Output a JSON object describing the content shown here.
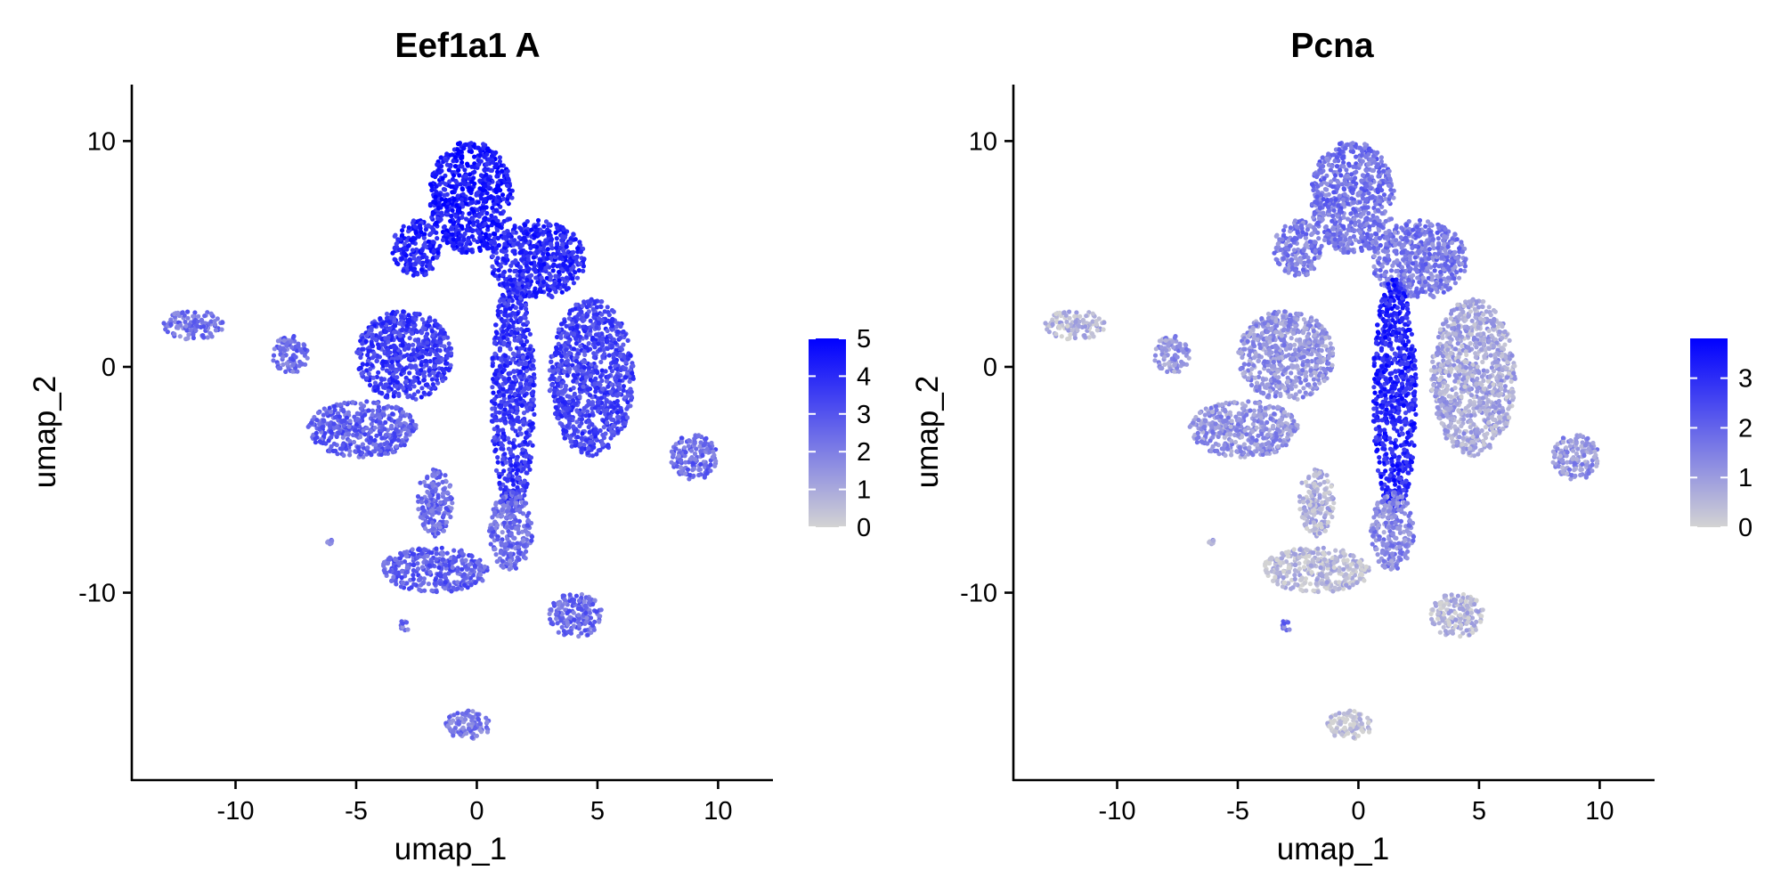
{
  "chart_data": [
    {
      "type": "scatter",
      "title": "Eef1a1 A",
      "xlabel": "umap_1",
      "ylabel": "umap_2",
      "xlim": [
        -14.3,
        12.2
      ],
      "ylim": [
        -18.3,
        12.5
      ],
      "xticks": [
        -10,
        -5,
        0,
        5,
        10
      ],
      "yticks": [
        -10,
        0,
        10
      ],
      "xtick_labels": [
        "-10",
        "-5",
        "0",
        "5",
        "10"
      ],
      "ytick_labels": [
        "-10",
        "0",
        "10"
      ],
      "grid": false,
      "legend_position": "right",
      "color_scale": {
        "low_color": "#d3d3d3",
        "high_color": "#0000ff",
        "min": 0,
        "max": 5,
        "ticks": [
          0,
          1,
          2,
          3,
          4,
          5
        ],
        "tick_labels": [
          "0",
          "1",
          "2",
          "3",
          "4",
          "5"
        ]
      },
      "clusters": [
        {
          "x": [
            -2.0,
            1.5
          ],
          "y": [
            5.0,
            10.0
          ],
          "level": 0.88
        },
        {
          "x": [
            -3.5,
            -1.5
          ],
          "y": [
            4.0,
            6.5
          ],
          "level": 0.82
        },
        {
          "x": [
            0.5,
            4.5
          ],
          "y": [
            3.0,
            6.5
          ],
          "level": 0.8
        },
        {
          "x": [
            -5.0,
            -1.0
          ],
          "y": [
            -1.5,
            2.5
          ],
          "level": 0.72
        },
        {
          "x": [
            0.6,
            2.4
          ],
          "y": [
            -6.5,
            4.0
          ],
          "level": 0.74
        },
        {
          "x": [
            3.0,
            6.5
          ],
          "y": [
            -4.0,
            3.0
          ],
          "level": 0.68
        },
        {
          "x": [
            -7.0,
            -2.5
          ],
          "y": [
            -4.0,
            -1.5
          ],
          "level": 0.55
        },
        {
          "x": [
            -2.5,
            -1.0
          ],
          "y": [
            -7.5,
            -4.5
          ],
          "level": 0.5
        },
        {
          "x": [
            -4.0,
            0.5
          ],
          "y": [
            -10.0,
            -8.0
          ],
          "level": 0.55
        },
        {
          "x": [
            0.5,
            2.3
          ],
          "y": [
            -9.0,
            -5.5
          ],
          "level": 0.48
        },
        {
          "x": [
            3.0,
            5.2
          ],
          "y": [
            -12.0,
            -10.0
          ],
          "level": 0.5
        },
        {
          "x": [
            -1.3,
            0.6
          ],
          "y": [
            -16.5,
            -15.2
          ],
          "level": 0.42
        },
        {
          "x": [
            -13.0,
            -10.5
          ],
          "y": [
            1.2,
            2.5
          ],
          "level": 0.45
        },
        {
          "x": [
            8.0,
            10.0
          ],
          "y": [
            -5.0,
            -3.0
          ],
          "level": 0.5
        },
        {
          "x": [
            -8.5,
            -7.0
          ],
          "y": [
            -0.3,
            1.4
          ],
          "level": 0.5
        },
        {
          "x": [
            -3.2,
            -2.8
          ],
          "y": [
            -11.8,
            -11.2
          ],
          "level": 0.45
        },
        {
          "x": [
            -6.2,
            -6.0
          ],
          "y": [
            -7.9,
            -7.6
          ],
          "level": 0.4
        }
      ]
    },
    {
      "type": "scatter",
      "title": "Pcna",
      "xlabel": "umap_1",
      "ylabel": "umap_2",
      "xlim": [
        -14.3,
        12.2
      ],
      "ylim": [
        -18.3,
        12.5
      ],
      "xticks": [
        -10,
        -5,
        0,
        5,
        10
      ],
      "yticks": [
        -10,
        0,
        10
      ],
      "xtick_labels": [
        "-10",
        "-5",
        "0",
        "5",
        "10"
      ],
      "ytick_labels": [
        "-10",
        "0",
        "10"
      ],
      "grid": false,
      "legend_position": "right",
      "color_scale": {
        "low_color": "#d3d3d3",
        "high_color": "#0000ff",
        "min": 0,
        "max": 3.8,
        "ticks": [
          0,
          1,
          2,
          3
        ],
        "tick_labels": [
          "0",
          "1",
          "2",
          "3"
        ]
      },
      "clusters": [
        {
          "x": [
            -2.0,
            1.5
          ],
          "y": [
            5.0,
            10.0
          ],
          "level": 0.45
        },
        {
          "x": [
            -3.5,
            -1.5
          ],
          "y": [
            4.0,
            6.5
          ],
          "level": 0.4
        },
        {
          "x": [
            0.5,
            4.5
          ],
          "y": [
            3.0,
            6.5
          ],
          "level": 0.42
        },
        {
          "x": [
            -5.0,
            -1.0
          ],
          "y": [
            -1.5,
            2.5
          ],
          "level": 0.3
        },
        {
          "x": [
            0.6,
            2.4
          ],
          "y": [
            -6.5,
            4.0
          ],
          "level": 0.82
        },
        {
          "x": [
            3.0,
            6.5
          ],
          "y": [
            -4.0,
            3.0
          ],
          "level": 0.2
        },
        {
          "x": [
            -7.0,
            -2.5
          ],
          "y": [
            -4.0,
            -1.5
          ],
          "level": 0.3
        },
        {
          "x": [
            -2.5,
            -1.0
          ],
          "y": [
            -7.5,
            -4.5
          ],
          "level": 0.15
        },
        {
          "x": [
            -4.0,
            0.5
          ],
          "y": [
            -10.0,
            -8.0
          ],
          "level": 0.1
        },
        {
          "x": [
            0.5,
            2.3
          ],
          "y": [
            -9.0,
            -5.5
          ],
          "level": 0.35
        },
        {
          "x": [
            3.0,
            5.2
          ],
          "y": [
            -12.0,
            -10.0
          ],
          "level": 0.12
        },
        {
          "x": [
            -1.3,
            0.6
          ],
          "y": [
            -16.5,
            -15.2
          ],
          "level": 0.05
        },
        {
          "x": [
            -13.0,
            -10.5
          ],
          "y": [
            1.2,
            2.5
          ],
          "level": 0.12
        },
        {
          "x": [
            8.0,
            10.0
          ],
          "y": [
            -5.0,
            -3.0
          ],
          "level": 0.3
        },
        {
          "x": [
            -8.5,
            -7.0
          ],
          "y": [
            -0.3,
            1.4
          ],
          "level": 0.3
        },
        {
          "x": [
            -3.2,
            -2.8
          ],
          "y": [
            -11.8,
            -11.2
          ],
          "level": 0.45
        },
        {
          "x": [
            -6.2,
            -6.0
          ],
          "y": [
            -7.9,
            -7.6
          ],
          "level": 0.2
        }
      ]
    }
  ]
}
